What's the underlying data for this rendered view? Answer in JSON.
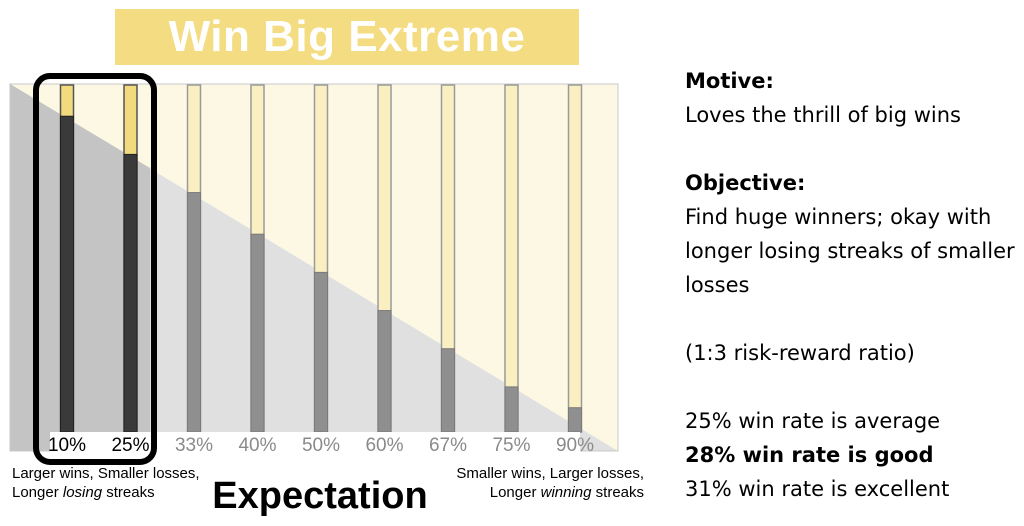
{
  "title": "Win Big Extreme",
  "chart_data": {
    "type": "bar",
    "categories": [
      "10%",
      "25%",
      "33%",
      "40%",
      "50%",
      "60%",
      "67%",
      "75%",
      "90%"
    ],
    "series": [
      {
        "values": [
          91,
          80,
          69,
          57,
          46,
          35,
          24,
          13,
          7
        ]
      }
    ],
    "ylim": [
      0,
      100
    ],
    "highlighted_categories": [
      "10%",
      "25%"
    ],
    "xlabel": "Expectation",
    "left_caption": [
      "Larger wins, Smaller losses,",
      "Longer ",
      "losing",
      " streaks"
    ],
    "right_caption": [
      "Smaller wins, Larger losses,",
      "Longer ",
      "winning",
      " streaks"
    ],
    "colors": {
      "bar_highlight": "#3a3a3a",
      "bar_normal": "#8f8f8f",
      "track_highlight": "#f2da7e",
      "track_normal": "#faefc0",
      "background_top": "#fdf8e4",
      "background_bottom": "#e0e0e0"
    }
  },
  "panel": {
    "motive_heading": "Motive:",
    "motive_text": "Loves the thrill of big wins",
    "objective_heading": "Objective:",
    "objective_lines": [
      "Find huge winners; okay with",
      "longer losing streaks of smaller",
      "losses"
    ],
    "ratio": "(1:3 risk-reward ratio)",
    "win_rates": [
      "25% win rate is average",
      "28% win rate is good",
      "31% win rate is excellent"
    ]
  }
}
